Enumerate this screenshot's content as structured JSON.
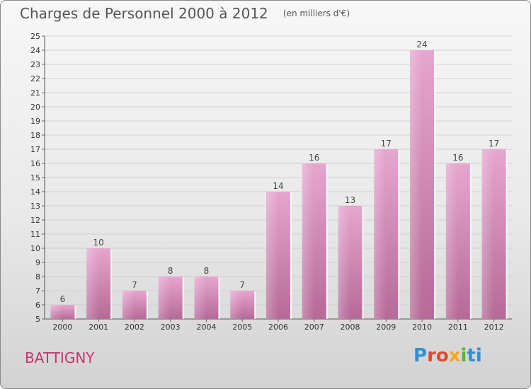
{
  "title": "Charges de Personnel 2000 à 2012",
  "subtitle": "(en milliers d'€)",
  "commune": "BATTIGNY",
  "logo": {
    "parts": [
      "P",
      "ro",
      "x",
      "i",
      "ti"
    ],
    "colors": [
      "#2f8fd8",
      "#e24a2b",
      "#f3a81b",
      "#58b532",
      "#2f8fd8"
    ]
  },
  "chart_data": {
    "type": "bar",
    "title": "Charges de Personnel 2000 à 2012",
    "subtitle": "(en milliers d'€)",
    "categories": [
      "2000",
      "2001",
      "2002",
      "2003",
      "2004",
      "2005",
      "2006",
      "2007",
      "2008",
      "2009",
      "2010",
      "2011",
      "2012"
    ],
    "values": [
      6,
      10,
      7,
      8,
      8,
      7,
      14,
      16,
      13,
      17,
      24,
      16,
      17
    ],
    "ylim": [
      5,
      25
    ],
    "yticks": [
      5,
      6,
      7,
      8,
      9,
      10,
      11,
      12,
      13,
      14,
      15,
      16,
      17,
      18,
      19,
      20,
      21,
      22,
      23,
      24,
      25
    ],
    "grid": "horizontal",
    "bar_color": "#d98bb9",
    "xlabel": "",
    "ylabel": ""
  }
}
